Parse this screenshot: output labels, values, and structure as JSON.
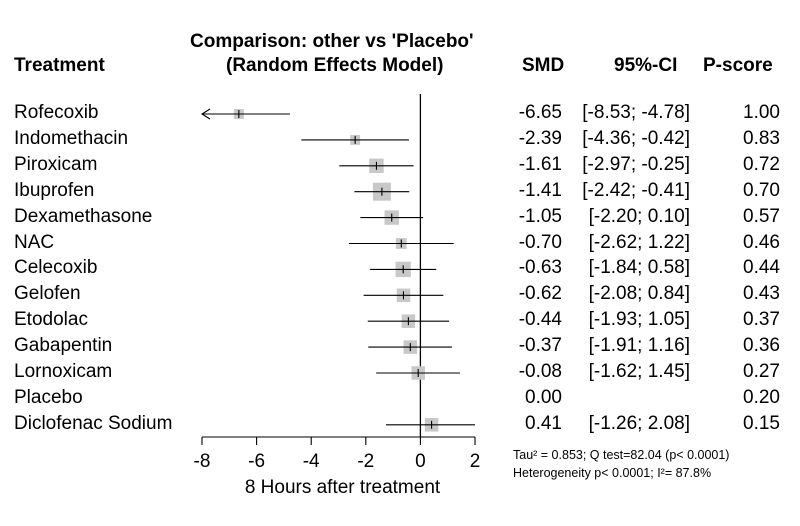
{
  "chart_data": {
    "type": "forest",
    "title_line1": "Comparison: other vs 'Placebo'",
    "title_line2": "(Random Effects Model)",
    "columns": {
      "treatment": "Treatment",
      "smd": "SMD",
      "ci": "95%-CI",
      "pscore": "P-score"
    },
    "xlabel": "8 Hours after treatment",
    "xlim": [
      -8,
      2
    ],
    "xticks": [
      -8,
      -6,
      -4,
      -2,
      0,
      2
    ],
    "reference_line": 0,
    "rows": [
      {
        "name": "Rofecoxib",
        "smd": -6.65,
        "lo": -8.53,
        "hi": -4.78,
        "smd_text": "-6.65",
        "ci_text": "[-8.53; -4.78]",
        "pscore": "1.00",
        "weight": 0.55
      },
      {
        "name": "Indomethacin",
        "smd": -2.39,
        "lo": -4.36,
        "hi": -0.42,
        "smd_text": "-2.39",
        "ci_text": "[-4.36; -0.42]",
        "pscore": "0.83",
        "weight": 0.55
      },
      {
        "name": "Piroxicam",
        "smd": -1.61,
        "lo": -2.97,
        "hi": -0.25,
        "smd_text": "-1.61",
        "ci_text": "[-2.97; -0.25]",
        "pscore": "0.72",
        "weight": 0.8
      },
      {
        "name": "Ibuprofen",
        "smd": -1.41,
        "lo": -2.42,
        "hi": -0.41,
        "smd_text": "-1.41",
        "ci_text": "[-2.42; -0.41]",
        "pscore": "0.70",
        "weight": 1.0
      },
      {
        "name": "Dexamethasone",
        "smd": -1.05,
        "lo": -2.2,
        "hi": 0.1,
        "smd_text": "-1.05",
        "ci_text": "[-2.20; 0.10]",
        "pscore": "0.57",
        "weight": 0.8
      },
      {
        "name": "NAC",
        "smd": -0.7,
        "lo": -2.62,
        "hi": 1.22,
        "smd_text": "-0.70",
        "ci_text": "[-2.62; 1.22]",
        "pscore": "0.46",
        "weight": 0.6
      },
      {
        "name": "Celecoxib",
        "smd": -0.63,
        "lo": -1.84,
        "hi": 0.58,
        "smd_text": "-0.63",
        "ci_text": "[-1.84; 0.58]",
        "pscore": "0.44",
        "weight": 0.85
      },
      {
        "name": "Gelofen",
        "smd": -0.62,
        "lo": -2.08,
        "hi": 0.84,
        "smd_text": "-0.62",
        "ci_text": "[-2.08; 0.84]",
        "pscore": "0.43",
        "weight": 0.75
      },
      {
        "name": "Etodolac",
        "smd": -0.44,
        "lo": -1.93,
        "hi": 1.05,
        "smd_text": "-0.44",
        "ci_text": "[-1.93; 1.05]",
        "pscore": "0.37",
        "weight": 0.75
      },
      {
        "name": "Gabapentin",
        "smd": -0.37,
        "lo": -1.91,
        "hi": 1.16,
        "smd_text": "-0.37",
        "ci_text": "[-1.91; 1.16]",
        "pscore": "0.36",
        "weight": 0.75
      },
      {
        "name": "Lornoxicam",
        "smd": -0.08,
        "lo": -1.62,
        "hi": 1.45,
        "smd_text": "-0.08",
        "ci_text": "[-1.62; 1.45]",
        "pscore": "0.27",
        "weight": 0.75
      },
      {
        "name": "Placebo",
        "smd": 0.0,
        "lo": null,
        "hi": null,
        "smd_text": "0.00",
        "ci_text": "",
        "pscore": "0.20",
        "weight": 0
      },
      {
        "name": "Diclofenac Sodium",
        "smd": 0.41,
        "lo": -1.26,
        "hi": 2.08,
        "smd_text": "0.41",
        "ci_text": "[-1.26; 2.08]",
        "pscore": "0.15",
        "weight": 0.75
      }
    ],
    "footnote_line1": "Tau² = 0.853; Q test=82.04 (p< 0.0001)",
    "footnote_line2": "Heterogeneity p< 0.0001; I²= 87.8%"
  },
  "colors": {
    "box": "#c8c8c8",
    "line": "#000000"
  }
}
